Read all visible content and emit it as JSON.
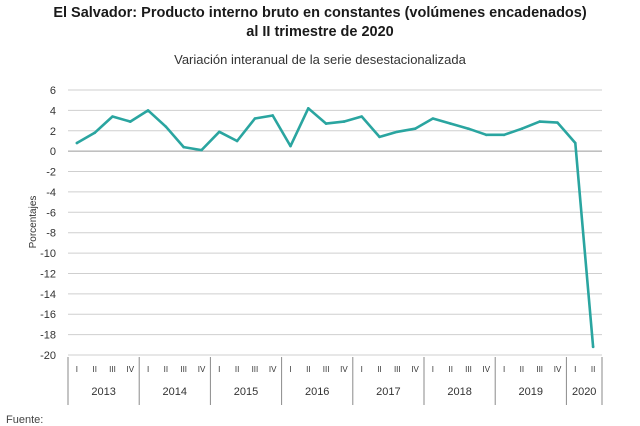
{
  "title_line1": "El Salvador: Producto interno bruto en constantes (volúmenes encadenados)",
  "title_line2": "al II trimestre de 2020",
  "subtitle": "Variación interanual de la serie desestacionalizada",
  "source_label": "Fuente:",
  "chart_data": {
    "type": "line",
    "title": "El Salvador: Producto interno bruto en constantes (volúmenes encadenados) al II trimestre de 2020",
    "subtitle": "Variación interanual de la serie desestacionalizada",
    "ylabel": "Porcentajes",
    "xlabel": "",
    "ylim": [
      -20,
      6
    ],
    "yticks": [
      6,
      4,
      2,
      0,
      -2,
      -4,
      -6,
      -8,
      -10,
      -12,
      -14,
      -16,
      -18,
      -20
    ],
    "years": [
      "2013",
      "2014",
      "2015",
      "2016",
      "2017",
      "2018",
      "2019",
      "2020"
    ],
    "quarter_labels": [
      "I",
      "II",
      "III",
      "IV"
    ],
    "grid": true,
    "line_color": "#2aa5a0",
    "series": [
      {
        "values": [
          0.8,
          1.8,
          3.4,
          2.9,
          4.0,
          2.4,
          0.4,
          0.1,
          1.9,
          1.0,
          3.2,
          3.5,
          0.5,
          4.2,
          2.7,
          2.9,
          3.4,
          1.4,
          1.9,
          2.2,
          3.2,
          2.7,
          2.2,
          1.6,
          1.6,
          2.2,
          2.9,
          2.8,
          0.8,
          -19.2
        ]
      }
    ]
  }
}
